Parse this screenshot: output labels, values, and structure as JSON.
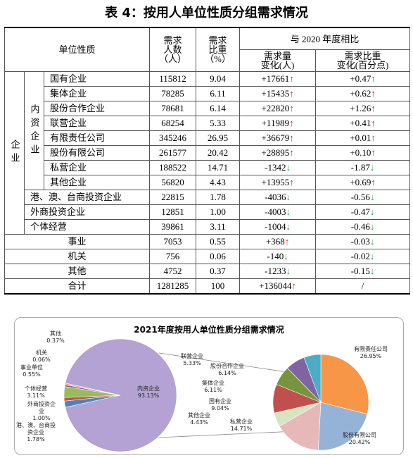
{
  "table": {
    "title": "表 4：按用人单位性质分组需求情况",
    "header": {
      "unit": "单位性质",
      "count": "需求\n人数\n（人）",
      "share": "需求\n比重\n（%）",
      "compare": "与 2020 年度相比",
      "change": "需求量\n变化(人)",
      "share_change": "需求比重\n变化(百分点)"
    },
    "enterprise": {
      "label": "企业",
      "domestic": {
        "label": "内资企业",
        "rows": [
          [
            "国有企业",
            "115812",
            "9.04",
            "+17661↑",
            "+0.47↑"
          ],
          [
            "集体企业",
            "78285",
            "6.11",
            "+15435↑",
            "+0.62↑"
          ],
          [
            "股份合作企业",
            "78681",
            "6.14",
            "+22820↑",
            "+1.26↑"
          ],
          [
            "联营企业",
            "68254",
            "5.33",
            "+11989↑",
            "+0.41↑"
          ],
          [
            "有限责任公司",
            "345246",
            "26.95",
            "+36679↑",
            "+0.01↑"
          ],
          [
            "股份有限公司",
            "261577",
            "20.42",
            "+28895↑",
            "+0.10↑"
          ],
          [
            "私营企业",
            "188522",
            "14.71",
            "-1342↓",
            "-1.87↓"
          ],
          [
            "其他企业",
            "56820",
            "4.43",
            "+13955↑",
            "+0.69↑"
          ]
        ]
      },
      "rows": [
        [
          "港、澳、台商投资企业",
          "22815",
          "1.78",
          "-4036↓",
          "-0.56↓"
        ],
        [
          "外商投资企业",
          "12851",
          "1.00",
          "-4003↓",
          "-0.47↓"
        ],
        [
          "个体经营",
          "39861",
          "3.11",
          "-1004↓",
          "-0.46↓"
        ]
      ]
    },
    "rows": [
      [
        "事业",
        "7053",
        "0.55",
        "+368↑",
        "-0.03↓"
      ],
      [
        "机关",
        "756",
        "0.06",
        "-140↓",
        "-0.02↓"
      ],
      [
        "其他",
        "4752",
        "0.37",
        "-1233↓",
        "-0.15↓"
      ]
    ],
    "total": [
      "合计",
      "1281285",
      "100",
      "+136044↑",
      "/"
    ]
  },
  "chart_data": [
    {
      "type": "pie",
      "title": "2021年度按用人单位性质分组需求情况",
      "labels": [
        "内资企业",
        "港、澳、台商投资企业",
        "外商投资企业",
        "个体经营",
        "事业单位",
        "机关",
        "其他"
      ],
      "values": [
        93.13,
        1.78,
        1.0,
        3.11,
        0.55,
        0.06,
        0.37
      ],
      "value_labels": [
        "93.13%",
        "1.78%",
        "1.00%",
        "3.11%",
        "0.55%",
        "0.06%",
        "0.37%"
      ],
      "colors": [
        "#b3a2d3",
        "#4f81bd",
        "#c0504d",
        "#9bbb59",
        "#8064a2",
        "#4bacc6",
        "#f79646"
      ]
    },
    {
      "type": "pie",
      "labels": [
        "有限责任公司",
        "股份有限公司",
        "私营企业",
        "其他企业",
        "国有企业",
        "集体企业",
        "股份合作企业",
        "联营企业"
      ],
      "values": [
        26.95,
        20.42,
        14.71,
        4.43,
        9.04,
        6.11,
        6.14,
        5.33
      ],
      "value_labels": [
        "26.95%",
        "20.42%",
        "14.71%",
        "4.43%",
        "9.04%",
        "6.11%",
        "6.14%",
        "5.33%"
      ],
      "colors": [
        "#f79646",
        "#95b3d7",
        "#e6b9b8",
        "#d7e4bd",
        "#c0504d",
        "#77933c",
        "#8064a2",
        "#4bacc6"
      ]
    }
  ]
}
